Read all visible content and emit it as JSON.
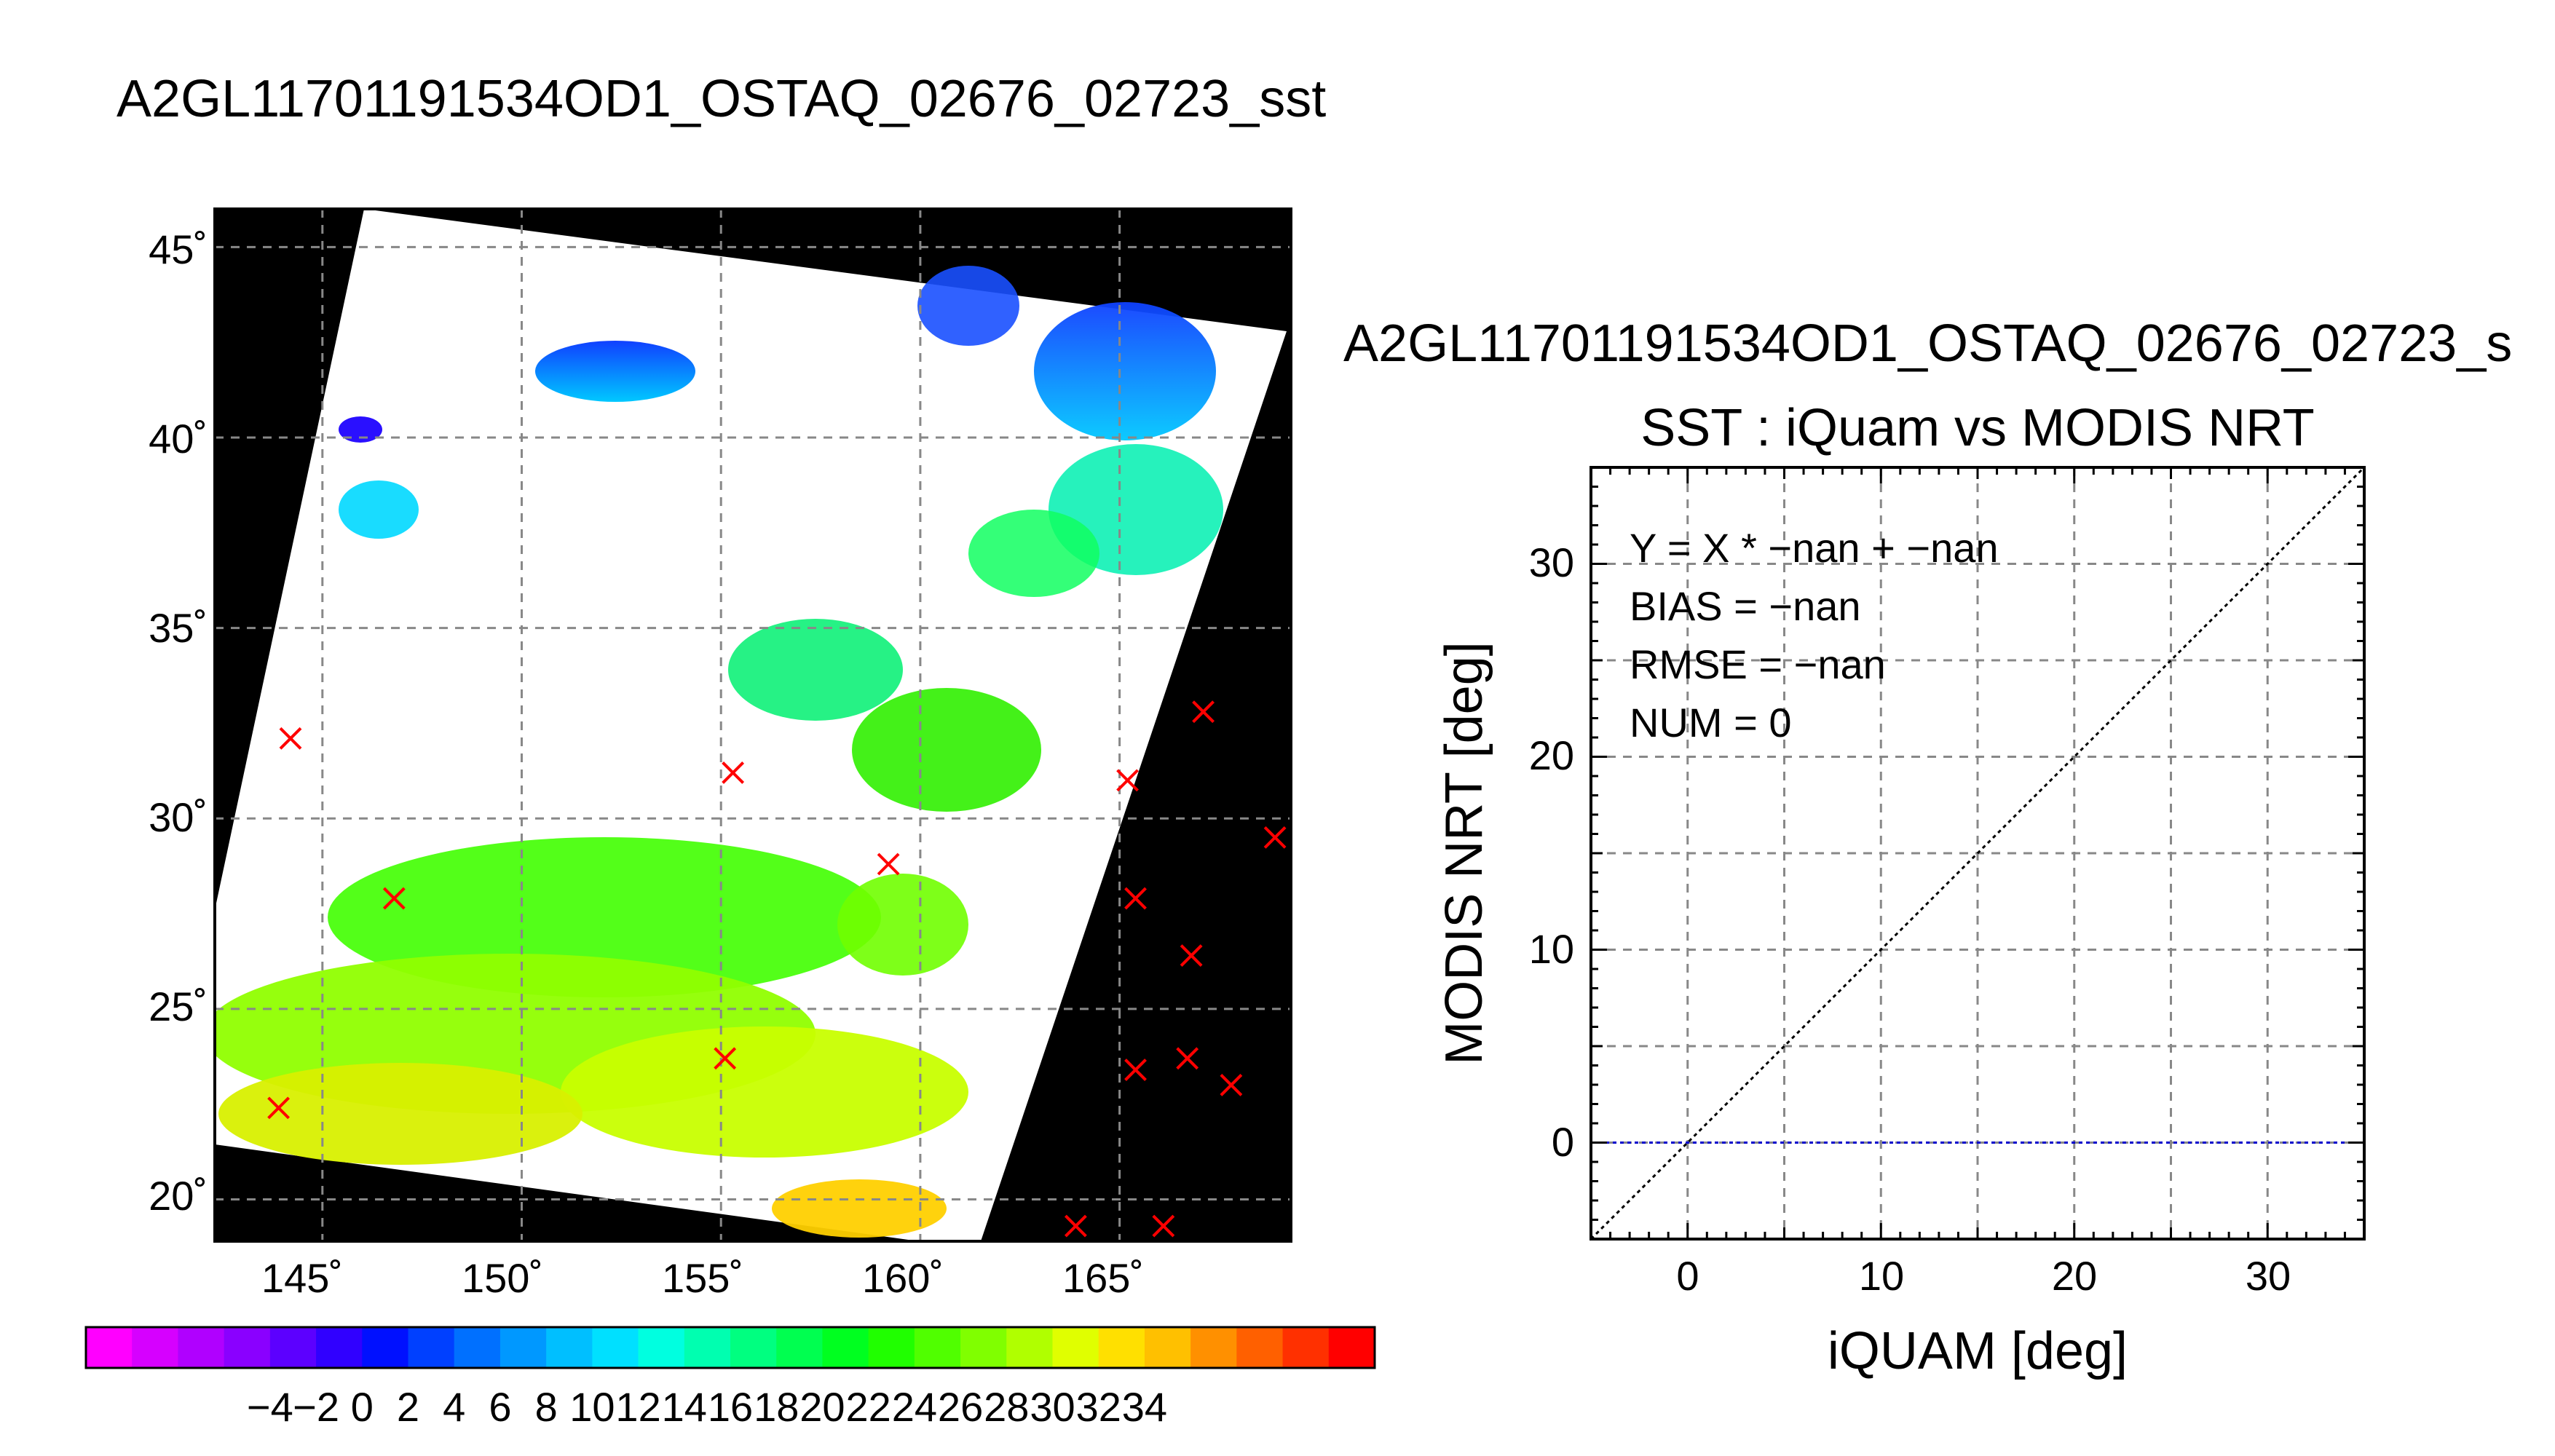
{
  "map": {
    "title": "A2GL11701191534OD1_OSTAQ_02676_02723_sst",
    "lat_ticks": [
      "45˚",
      "40˚",
      "35˚",
      "30˚",
      "25˚",
      "20˚"
    ],
    "lon_ticks": [
      "145˚",
      "150˚",
      "155˚",
      "160˚",
      "165˚"
    ],
    "colorbar_ticks": [
      "−4",
      "−2",
      "0",
      "2",
      "4",
      "6",
      "8",
      "10",
      "12",
      "14",
      "16",
      "18",
      "20",
      "22",
      "24",
      "26",
      "28",
      "30",
      "32",
      "34"
    ],
    "colorbar_colors": [
      "#ff00ff",
      "#d600ff",
      "#b000ff",
      "#8a00ff",
      "#5c00ff",
      "#3000ff",
      "#0010ff",
      "#0040ff",
      "#0070ff",
      "#0098ff",
      "#00bfff",
      "#00e0ff",
      "#00ffe0",
      "#00ffb0",
      "#00ff80",
      "#00ff50",
      "#00ff20",
      "#20ff00",
      "#50ff00",
      "#80ff00",
      "#b0ff00",
      "#e0ff00",
      "#ffe000",
      "#ffc000",
      "#ff9000",
      "#ff6000",
      "#ff3000",
      "#ff0000"
    ]
  },
  "chart_data": [
    {
      "type": "scatter",
      "title": "A2GL11701191534OD1_OSTAQ_02676_02723_sst",
      "xlabel": "",
      "ylabel": "",
      "xlim": [
        142.3,
        169.3
      ],
      "ylim": [
        18.9,
        46.0
      ],
      "markers": [
        {
          "lon": 144.2,
          "lat": 32.1
        },
        {
          "lon": 146.8,
          "lat": 27.9
        },
        {
          "lon": 143.9,
          "lat": 22.4
        },
        {
          "lon": 155.3,
          "lat": 31.2
        },
        {
          "lon": 159.2,
          "lat": 28.8
        },
        {
          "lon": 155.1,
          "lat": 23.7
        },
        {
          "lon": 165.2,
          "lat": 31.0
        },
        {
          "lon": 167.1,
          "lat": 32.8
        },
        {
          "lon": 168.9,
          "lat": 29.5
        },
        {
          "lon": 165.4,
          "lat": 27.9
        },
        {
          "lon": 166.8,
          "lat": 26.4
        },
        {
          "lon": 165.4,
          "lat": 23.4
        },
        {
          "lon": 166.7,
          "lat": 23.7
        },
        {
          "lon": 167.8,
          "lat": 23.0
        },
        {
          "lon": 163.9,
          "lat": 19.3
        },
        {
          "lon": 166.1,
          "lat": 19.3
        }
      ],
      "marker_color": "#ff0000",
      "grid": true
    },
    {
      "type": "scatter",
      "title": "SST : iQuam vs MODIS NRT",
      "header": "A2GL11701191534OD1_OSTAQ_02676_02723_s",
      "xlabel": "iQUAM [deg]",
      "ylabel": "MODIS NRT [deg]",
      "xlim": [
        -5,
        35
      ],
      "ylim": [
        -5,
        35
      ],
      "x_ticks": [
        "0",
        "10",
        "20",
        "30"
      ],
      "y_ticks": [
        "0",
        "10",
        "20",
        "30"
      ],
      "stats": [
        "Y = X * −nan + −nan",
        "BIAS = −nan",
        "RMSE = −nan",
        "NUM = 0"
      ],
      "points": [],
      "reference_lines": [
        {
          "name": "",
          "x": [
            -5,
            35
          ],
          "y": [
            -5,
            35
          ],
          "color": "#000000",
          "style": "dotted"
        },
        {
          "name": "",
          "x": [
            -5,
            35
          ],
          "y": [
            0,
            0
          ],
          "color": "#0000cc",
          "style": "dotted"
        }
      ],
      "grid": true
    }
  ]
}
